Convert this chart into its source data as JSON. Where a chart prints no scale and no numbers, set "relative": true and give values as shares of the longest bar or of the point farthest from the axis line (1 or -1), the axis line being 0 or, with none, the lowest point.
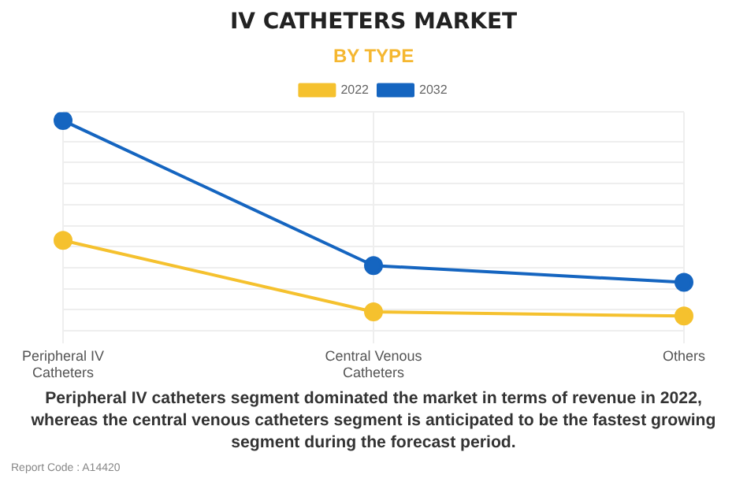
{
  "chart_data": {
    "type": "line",
    "title": "IV CATHETERS MARKET",
    "subtitle": "BY TYPE",
    "categories": [
      "Peripheral IV Catheters",
      "Central Venous Catheters",
      "Others"
    ],
    "series": [
      {
        "name": "2022",
        "color": "#f5c12e",
        "values": [
          0.43,
          0.09,
          0.07
        ]
      },
      {
        "name": "2032",
        "color": "#1565c0",
        "values": [
          1,
          0.31,
          0.23
        ]
      }
    ],
    "relative": true,
    "grid": true,
    "legend": "top",
    "marker": "circle",
    "line_style": "solid",
    "annotations": [
      "Peripheral IV catheters segment dominated the market in terms of revenue in 2022, whereas the central venous catheters segment is anticipated to be the fastest growing segment during the forecast period.",
      "Report Code : A14420"
    ]
  }
}
